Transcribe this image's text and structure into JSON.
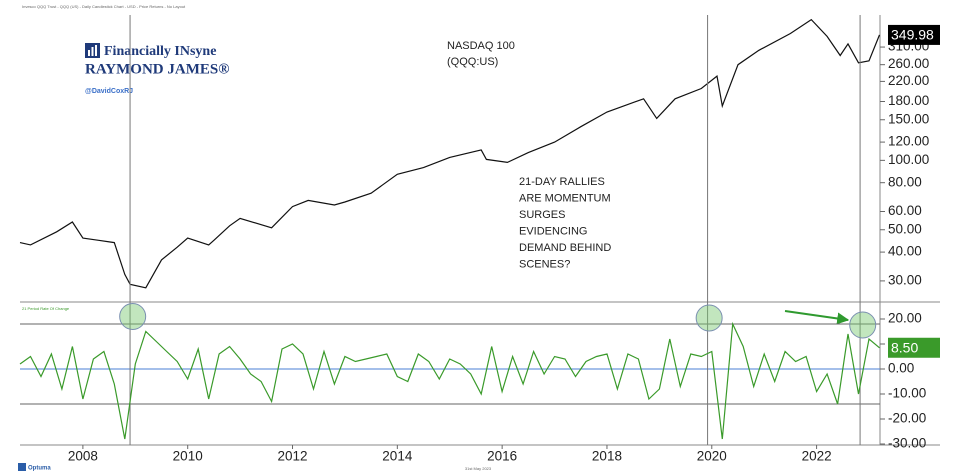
{
  "branding": {
    "name": "Financially INsyne",
    "company": "RAYMOND JAMES®",
    "handle": "@DavidCoxRJ",
    "source": "Invesco QQQ Trust - QQQ (US) - Daily Candlestick Chart - USD - Price Returns - No Layout",
    "date": "31st May 2023",
    "vendor": "Optuma"
  },
  "chart_data": [
    {
      "type": "line",
      "title": "NASDAQ 100",
      "subtitle": "(QQQ:US)",
      "annotation": [
        "21-DAY RALLIES",
        "ARE MOMENTUM",
        "SURGES",
        "EVIDENCING",
        "DEMAND BEHIND",
        "SCENES?"
      ],
      "log_scale": true,
      "xlim": [
        2006.8,
        2023.21
      ],
      "ylim": [
        24.3,
        427
      ],
      "yticks": [
        {
          "value": 30,
          "label": "30.00"
        },
        {
          "value": 40,
          "label": "40.00"
        },
        {
          "value": 50,
          "label": "50.00"
        },
        {
          "value": 60,
          "label": "60.00"
        },
        {
          "value": 80,
          "label": "80.00"
        },
        {
          "value": 100,
          "label": "100.00"
        },
        {
          "value": 120,
          "label": "120.00"
        },
        {
          "value": 150,
          "label": "150.00"
        },
        {
          "value": 180,
          "label": "180.00"
        },
        {
          "value": 220,
          "label": "220.00"
        },
        {
          "value": 260,
          "label": "260.00"
        },
        {
          "value": 310,
          "label": "310.00"
        }
      ],
      "series": [
        {
          "color": "#111111",
          "x": [
            2006.8,
            2007.0,
            2007.5,
            2007.8,
            2008.0,
            2008.3,
            2008.6,
            2008.8,
            2008.9,
            2009.2,
            2009.5,
            2009.8,
            2010.0,
            2010.4,
            2010.5,
            2010.8,
            2011.0,
            2011.6,
            2012.0,
            2012.3,
            2012.8,
            2013.0,
            2013.5,
            2014.0,
            2014.5,
            2015.0,
            2015.6,
            2015.7,
            2016.1,
            2016.5,
            2017.0,
            2017.5,
            2018.0,
            2018.7,
            2018.95,
            2019.3,
            2019.8,
            2020.1,
            2020.2,
            2020.5,
            2020.9,
            2021.5,
            2021.9,
            2022.2,
            2022.45,
            2022.6,
            2022.8,
            2023.0,
            2023.2
          ],
          "values": [
            44,
            43,
            49,
            54,
            46,
            45,
            44,
            32,
            29,
            28,
            37,
            42,
            46,
            43,
            45,
            52,
            56,
            51,
            63,
            67,
            64,
            66,
            72,
            87,
            93,
            103,
            111,
            101,
            98,
            108,
            120,
            140,
            162,
            185,
            152,
            185,
            205,
            232,
            172,
            260,
            300,
            355,
            408,
            345,
            285,
            320,
            265,
            270,
            349.98
          ]
        }
      ]
    },
    {
      "type": "line",
      "title": "21 Period Rate Of Change",
      "xlim": [
        2006.8,
        2023.21
      ],
      "ylim": [
        -30.4,
        26.8
      ],
      "xticks": [
        2008,
        2010,
        2012,
        2014,
        2016,
        2018,
        2020,
        2022
      ],
      "yticks": [
        {
          "value": -30,
          "label": "-30.00"
        },
        {
          "value": -20,
          "label": "-20.00"
        },
        {
          "value": -10,
          "label": "-10.00"
        },
        {
          "value": 0,
          "label": "0.00"
        },
        {
          "value": 10,
          "label": "10.00"
        },
        {
          "value": 20,
          "label": "20.00"
        }
      ],
      "reference_lines": [
        18,
        -14
      ],
      "zero_line_color": "#4a7fd6",
      "vlines": [
        2008.9,
        2019.92,
        2022.83
      ],
      "circles": [
        {
          "x": 2008.95,
          "y": 21
        },
        {
          "x": 2019.95,
          "y": 20.4
        },
        {
          "x": 2022.88,
          "y": 17.6
        }
      ],
      "series": [
        {
          "color": "#3a9a2a",
          "x": [
            2006.8,
            2007.0,
            2007.2,
            2007.4,
            2007.6,
            2007.8,
            2008.0,
            2008.2,
            2008.4,
            2008.6,
            2008.8,
            2009.0,
            2009.2,
            2009.4,
            2009.6,
            2009.8,
            2010.0,
            2010.2,
            2010.4,
            2010.6,
            2010.8,
            2011.0,
            2011.2,
            2011.4,
            2011.6,
            2011.8,
            2012.0,
            2012.2,
            2012.4,
            2012.6,
            2012.8,
            2013.0,
            2013.2,
            2013.4,
            2013.6,
            2013.8,
            2014.0,
            2014.2,
            2014.4,
            2014.6,
            2014.8,
            2015.0,
            2015.2,
            2015.4,
            2015.6,
            2015.8,
            2016.0,
            2016.2,
            2016.4,
            2016.6,
            2016.8,
            2017.0,
            2017.2,
            2017.4,
            2017.6,
            2017.8,
            2018.0,
            2018.2,
            2018.4,
            2018.6,
            2018.8,
            2019.0,
            2019.2,
            2019.4,
            2019.6,
            2019.8,
            2020.0,
            2020.2,
            2020.4,
            2020.6,
            2020.8,
            2021.0,
            2021.2,
            2021.4,
            2021.6,
            2021.8,
            2022.0,
            2022.2,
            2022.4,
            2022.6,
            2022.8,
            2023.0,
            2023.2
          ],
          "values": [
            2,
            5,
            -3,
            6,
            -8,
            9,
            -12,
            4,
            7,
            -6,
            -28,
            2,
            15,
            11,
            7,
            3,
            -4,
            8,
            -12,
            6,
            9,
            4,
            -2,
            -5,
            -13,
            8,
            10,
            6,
            -8,
            7,
            -6,
            5,
            3,
            4,
            5,
            6,
            -3,
            -5,
            6,
            3,
            -4,
            4,
            2,
            -2,
            -10,
            9,
            -9,
            5,
            -6,
            7,
            -2,
            5,
            4,
            -3,
            3,
            5,
            6,
            -8,
            6,
            4,
            -12,
            -8,
            12,
            -7,
            6,
            5,
            7,
            -28,
            18,
            9,
            -7,
            6,
            -5,
            7,
            3,
            5,
            -9,
            -2,
            -14,
            14,
            -10,
            12,
            8.5
          ],
          "value_labels": [
            null,
            null,
            null,
            null,
            null,
            null,
            null,
            null,
            null,
            null,
            null,
            null,
            null,
            null,
            null,
            null,
            null,
            null,
            null,
            null,
            null,
            null,
            null,
            null,
            null,
            null,
            null,
            null,
            null,
            null,
            null,
            null,
            null,
            null,
            null,
            null,
            null,
            null,
            null,
            null,
            null,
            null,
            null,
            null,
            null,
            null,
            null,
            null,
            null,
            null,
            null,
            null,
            null,
            null,
            null,
            null,
            null,
            null,
            null,
            null,
            null,
            null,
            null,
            null,
            null,
            null,
            null,
            null,
            null,
            null,
            null,
            null,
            null,
            null,
            null,
            null,
            null,
            null,
            null,
            null,
            null,
            null,
            "8.50"
          ]
        }
      ]
    }
  ]
}
